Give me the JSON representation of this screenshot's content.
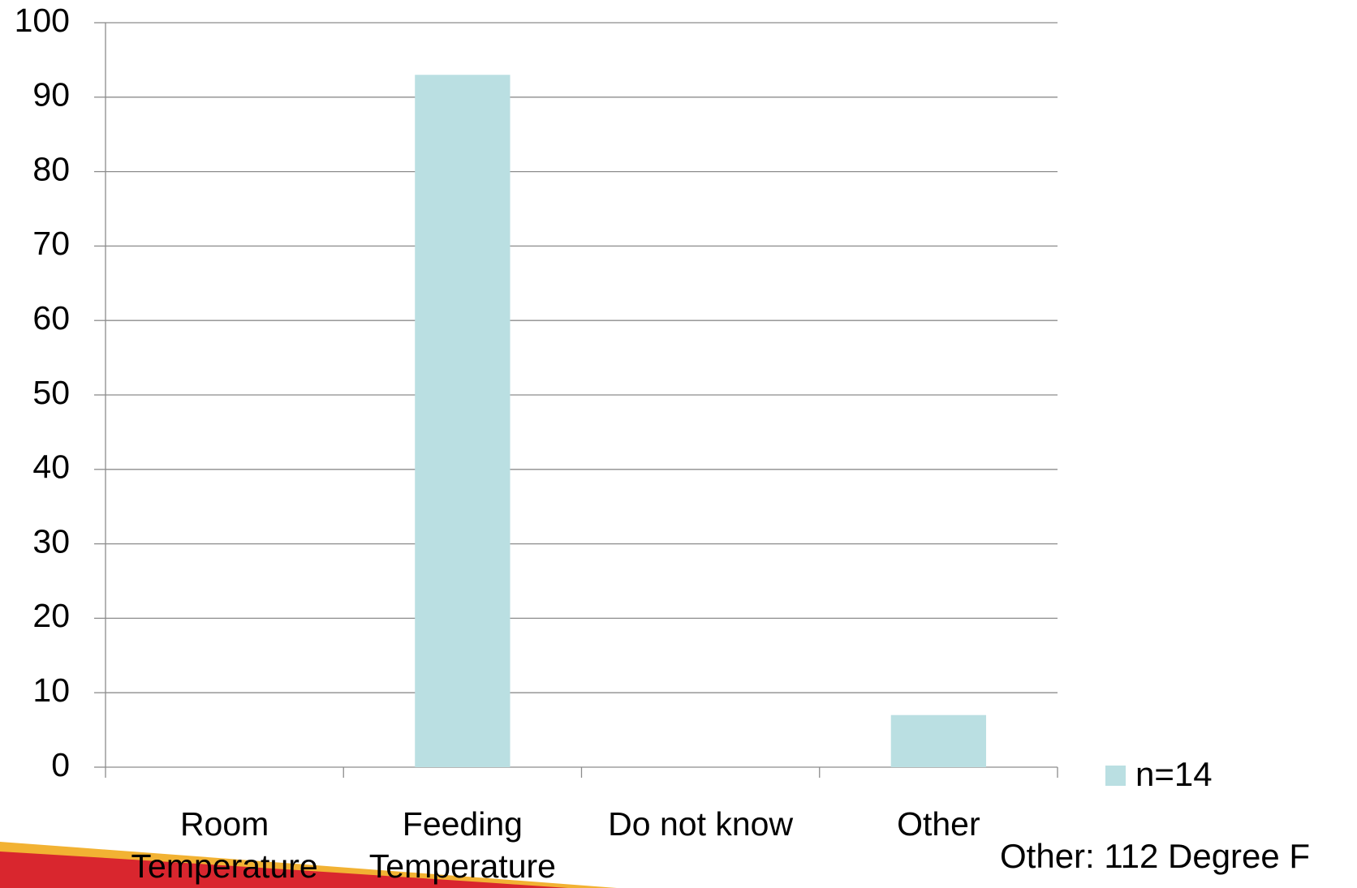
{
  "chart_data": {
    "type": "bar",
    "categories": [
      "Room Temperature",
      "Feeding Temperature",
      "Do not know",
      "Other"
    ],
    "series": [
      {
        "name": "n=14",
        "color": "#badfe2",
        "values": [
          0,
          93,
          0,
          7
        ]
      }
    ],
    "ylim": [
      0,
      100
    ],
    "yticks": [
      0,
      10,
      20,
      30,
      40,
      50,
      60,
      70,
      80,
      90,
      100
    ],
    "grid": true,
    "legend": "right",
    "annotation": "Other: 112 Degree F"
  }
}
